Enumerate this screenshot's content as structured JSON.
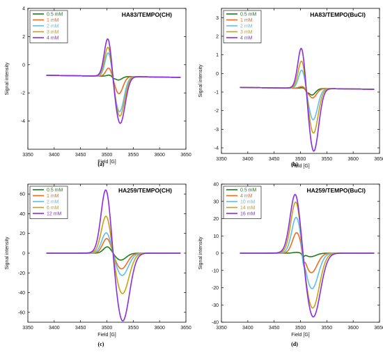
{
  "colors": {
    "green": "#1a7d1a",
    "orange": "#f26b1d",
    "lightblue": "#5bc0eb",
    "gold": "#c9a20a",
    "purple": "#8a2be2"
  },
  "chart_data": [
    {
      "type": "line",
      "title": "HA83/TEMPO(CH)",
      "caption": "(a)",
      "xlabel": "Field [G]",
      "ylabel": "Signal intensity",
      "xlim": [
        3350,
        3650
      ],
      "ylim": [
        -6,
        4
      ],
      "xticks": [
        3350,
        3400,
        3450,
        3500,
        3550,
        3600,
        3650
      ],
      "yticks": [
        -4,
        -2,
        0,
        2,
        4
      ],
      "legend_position": "top-left",
      "series": [
        {
          "name": "0.5 mM",
          "color": "#1a7d1a",
          "A": 0.085,
          "B": 0.25,
          "w": 8,
          "step": 0.08
        },
        {
          "name": "1 mM",
          "color": "#f26b1d",
          "A": 0.6,
          "B": 1.2,
          "w": 9,
          "step": 0
        },
        {
          "name": "2 mM",
          "color": "#5bc0eb",
          "A": 1.7,
          "B": 2.45,
          "w": 10,
          "step": 0
        },
        {
          "name": "3 mM",
          "color": "#c9a20a",
          "A": 2.1,
          "B": 2.75,
          "w": 10.5,
          "step": 0
        },
        {
          "name": "4 mM",
          "color": "#8a2be2",
          "A": 2.7,
          "B": 3.25,
          "w": 11,
          "step": 0
        }
      ],
      "x_range": [
        3385,
        3640
      ],
      "center": 3512,
      "baseline": [
        -0.75,
        -0.9
      ]
    },
    {
      "type": "line",
      "title": "HA83/TEMPO(BuCl)",
      "caption": "(b)",
      "xlabel": "Field [G]",
      "ylabel": "Signal intensity",
      "xlim": [
        3350,
        3650
      ],
      "ylim": [
        -4.3,
        3.5
      ],
      "xticks": [
        3350,
        3400,
        3450,
        3500,
        3550,
        3600,
        3650
      ],
      "yticks": [
        -4,
        -3,
        -2,
        -1,
        0,
        1,
        2,
        3
      ],
      "legend_position": "top-left",
      "series": [
        {
          "name": "0.5 mM",
          "color": "#1a7d1a",
          "A": 0.03,
          "B": 0.35,
          "w": 8,
          "step": 0.1
        },
        {
          "name": "1 mM",
          "color": "#f26b1d",
          "A": 0.1,
          "B": 0.5,
          "w": 9,
          "step": 0.08
        },
        {
          "name": "2 mM",
          "color": "#5bc0eb",
          "A": 1.0,
          "B": 1.65,
          "w": 10,
          "step": 0
        },
        {
          "name": "3 mM",
          "color": "#c9a20a",
          "A": 1.5,
          "B": 2.35,
          "w": 10.5,
          "step": 0
        },
        {
          "name": "4 mM",
          "color": "#8a2be2",
          "A": 2.2,
          "B": 3.3,
          "w": 11,
          "step": 0
        }
      ],
      "x_range": [
        3385,
        3640
      ],
      "center": 3512,
      "baseline": [
        -0.75,
        -0.85
      ]
    },
    {
      "type": "line",
      "title": "HA259/TEMPO(CH)",
      "caption": "(c)",
      "xlabel": "Field [G]",
      "ylabel": "Signal intensity",
      "xlim": [
        3350,
        3650
      ],
      "ylim": [
        -70,
        70
      ],
      "xticks": [
        3350,
        3400,
        3450,
        3500,
        3550,
        3600,
        3650
      ],
      "yticks": [
        -60,
        -40,
        -20,
        0,
        20,
        40,
        60
      ],
      "legend_position": "top-left",
      "series": [
        {
          "name": "0.5 mM",
          "color": "#1a7d1a",
          "A": 6.5,
          "B": 6.8,
          "w": 12,
          "step": 0
        },
        {
          "name": "1 mM",
          "color": "#f26b1d",
          "A": 15,
          "B": 15.5,
          "w": 13,
          "step": 0
        },
        {
          "name": "2 mM",
          "color": "#5bc0eb",
          "A": 21,
          "B": 22,
          "w": 14,
          "step": 0
        },
        {
          "name": "6 mM",
          "color": "#c9a20a",
          "A": 38,
          "B": 40,
          "w": 14.5,
          "step": 0
        },
        {
          "name": "12 mM",
          "color": "#8a2be2",
          "A": 65,
          "B": 67,
          "w": 15,
          "step": 0
        }
      ],
      "x_range": [
        3385,
        3640
      ],
      "center": 3512,
      "baseline": [
        0,
        0
      ]
    },
    {
      "type": "line",
      "title": "HA259/TEMPO(BuCl)",
      "caption": "(d)",
      "xlabel": "Field [G]",
      "ylabel": "Signal intensity",
      "xlim": [
        3350,
        3650
      ],
      "ylim": [
        -40,
        40
      ],
      "xticks": [
        3350,
        3400,
        3450,
        3500,
        3550,
        3600,
        3650
      ],
      "yticks": [
        -40,
        -30,
        -20,
        -10,
        0,
        10,
        20,
        30,
        40
      ],
      "legend_position": "top-left",
      "series": [
        {
          "name": "0.5 mM",
          "color": "#1a7d1a",
          "A": 0.5,
          "B": 2,
          "w": 12,
          "step": 1.5
        },
        {
          "name": "4 mM",
          "color": "#f26b1d",
          "A": 12,
          "B": 11,
          "w": 13,
          "step": 5
        },
        {
          "name": "10 mM",
          "color": "#5bc0eb",
          "A": 21,
          "B": 20,
          "w": 14,
          "step": 6
        },
        {
          "name": "14 mM",
          "color": "#c9a20a",
          "A": 30,
          "B": 31,
          "w": 15,
          "step": 0
        },
        {
          "name": "16 mM",
          "color": "#8a2be2",
          "A": 34.5,
          "B": 36,
          "w": 16,
          "step": 0
        }
      ],
      "x_range": [
        3385,
        3640
      ],
      "center": 3505,
      "baseline": [
        0,
        0
      ]
    }
  ]
}
